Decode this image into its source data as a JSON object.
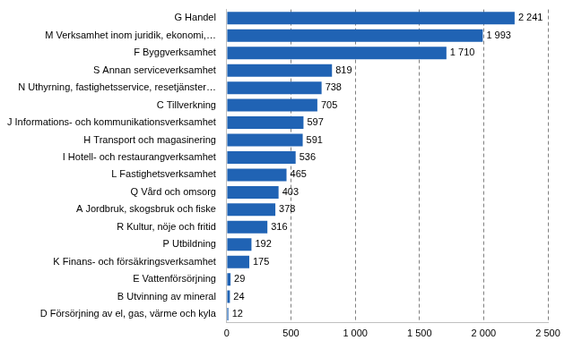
{
  "chart_data": {
    "type": "bar",
    "orientation": "horizontal",
    "categories": [
      "G Handel",
      "M Verksamhet inom juridik, ekonomi,…",
      "F Byggverksamhet",
      "S Annan serviceverksamhet",
      "N Uthyrning, fastighetsservice, resetjänster…",
      "C Tillverkning",
      "J Informations- och kommunikationsverksamhet",
      "H Transport och magasinering",
      "I Hotell- och restaurangverksamhet",
      "L Fastighetsverksamhet",
      "Q Vård och omsorg",
      "A Jordbruk, skogsbruk och fiske",
      "R Kultur, nöje och fritid",
      "P Utbildning",
      "K Finans- och försäkringsverksamhet",
      "E Vattenförsörjning",
      "B Utvinning av mineral",
      "D Försörjning av el, gas, värme och kyla"
    ],
    "values": [
      2241,
      1993,
      1710,
      819,
      738,
      705,
      597,
      591,
      536,
      465,
      403,
      378,
      316,
      192,
      175,
      29,
      24,
      12
    ],
    "value_labels": [
      "2 241",
      "1 993",
      "1 710",
      "819",
      "738",
      "705",
      "597",
      "591",
      "536",
      "465",
      "403",
      "378",
      "316",
      "192",
      "175",
      "29",
      "24",
      "12"
    ],
    "data_labels": true,
    "color": "#2063b4",
    "xlim": [
      0,
      2500
    ],
    "xticks": [
      0,
      500,
      {
        "value": 1000,
        "label": "1 000"
      },
      {
        "value": 1500,
        "label": "1 500"
      },
      {
        "value": 2000,
        "label": "2 000"
      },
      {
        "value": 2500,
        "label": "2 500"
      }
    ],
    "grid": true
  }
}
